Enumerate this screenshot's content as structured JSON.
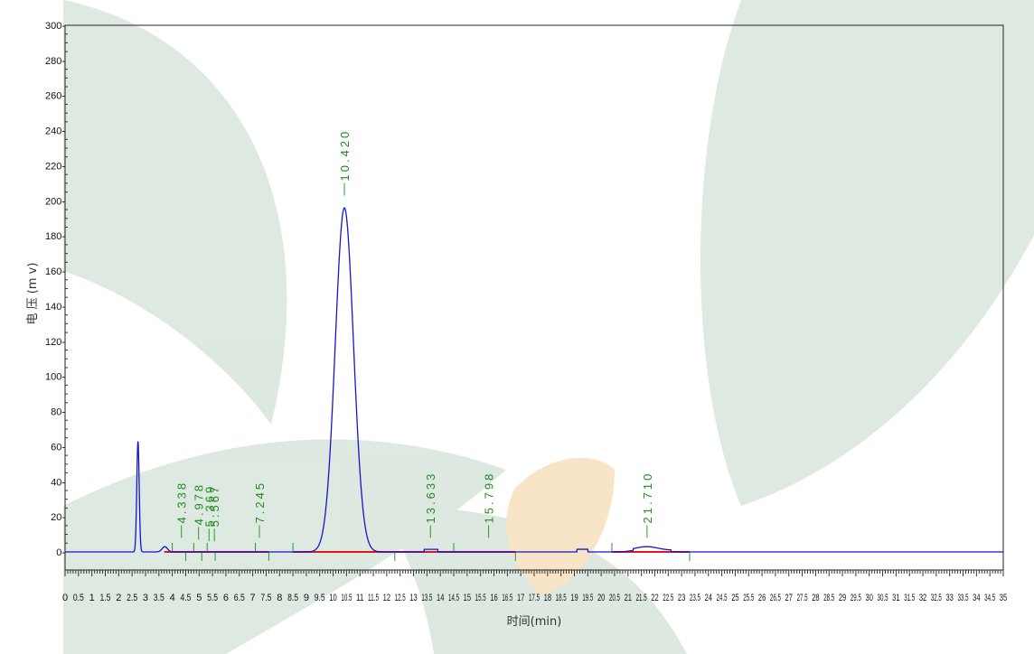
{
  "chart_data": {
    "type": "line",
    "title": "",
    "xlabel": "时间(min)",
    "ylabel": "电 压 (m v)",
    "xlim": [
      0,
      35
    ],
    "ylim": [
      -10,
      300
    ],
    "y_ticks": [
      0,
      20,
      40,
      60,
      80,
      100,
      120,
      140,
      160,
      180,
      200,
      220,
      240,
      260,
      280,
      300
    ],
    "y_tick_labels": [
      "0-",
      "20-",
      "40-",
      "60-",
      "80-",
      "100-",
      "120-",
      "140-",
      "160-",
      "180-",
      "200-",
      "220-",
      "240-",
      "260-",
      "280-",
      "300-"
    ],
    "x_ticks": [
      0,
      0.5,
      1,
      1.5,
      2,
      2.5,
      3,
      3.5,
      4,
      4.5,
      5,
      5.5,
      6,
      6.5,
      7,
      7.5,
      8,
      8.5,
      9,
      9.5,
      10,
      10.5,
      11,
      11.5,
      12,
      12.5,
      13,
      13.5,
      14,
      14.5,
      15,
      15.5,
      16,
      16.5,
      17,
      17.5,
      18,
      18.5,
      19,
      19.5,
      20,
      20.5,
      21,
      21.5,
      22,
      22.5,
      23,
      23.5,
      24,
      24.5,
      25,
      25.5,
      26,
      26.5,
      27,
      27.5,
      28,
      28.5,
      29,
      29.5,
      30,
      30.5,
      31,
      31.5,
      32,
      32.5,
      33,
      33.5,
      34,
      34.5,
      35
    ],
    "x_tick_labels": [
      "0",
      "0.5",
      "1",
      "1.5",
      "2",
      "2.5",
      "3",
      "3.5",
      "4",
      "4.5",
      "5",
      "5.5",
      "6",
      "6.5",
      "7",
      "7.5",
      "8",
      "8.5",
      "9",
      "9.5",
      "10",
      "10.5",
      "11",
      "11.5",
      "12",
      "12.5",
      "13",
      "13.5",
      "14",
      "14.5",
      "15",
      "15.5",
      "16",
      "16.5",
      "17",
      "17.5",
      "18",
      "18.5",
      "19",
      "19.5",
      "20",
      "20.5",
      "21",
      "21.5",
      "22",
      "22.5",
      "23",
      "23.5",
      "24",
      "24.5",
      "25",
      "25.5",
      "26",
      "26.5",
      "27",
      "27.5",
      "28",
      "28.5",
      "29",
      "29.5",
      "30",
      "30.5",
      "31",
      "31.5",
      "32",
      "32.5",
      "33",
      "33.5",
      "34",
      "34.5",
      "35"
    ],
    "peak_labels": [
      {
        "text": "4.338",
        "x": 4.34,
        "y_top": 8
      },
      {
        "text": "4.978",
        "x": 4.98,
        "y_top": 7
      },
      {
        "text": "5.369",
        "x": 5.37,
        "y_top": 6
      },
      {
        "text": "5.567",
        "x": 5.57,
        "y_top": 6
      },
      {
        "text": "7.245",
        "x": 7.25,
        "y_top": 8
      },
      {
        "text": "10.420",
        "x": 10.42,
        "y_top": 203
      },
      {
        "text": "13.633",
        "x": 13.63,
        "y_top": 8
      },
      {
        "text": "15.798",
        "x": 15.8,
        "y_top": 8
      },
      {
        "text": "21.710",
        "x": 21.71,
        "y_top": 8
      }
    ],
    "series": [
      {
        "color": "#1515d0",
        "peaks": [
          {
            "t": 2.72,
            "h": 63,
            "w": 0.045
          },
          {
            "t": 3.72,
            "h": 3,
            "w": 0.1
          },
          {
            "t": 10.42,
            "h": 196,
            "w": 0.34
          },
          {
            "t": 21.7,
            "h": 2,
            "w": 0.4
          }
        ],
        "boxes": [
          {
            "t0": 13.4,
            "t1": 13.9,
            "h": 1.5
          },
          {
            "t0": 19.1,
            "t1": 19.5,
            "h": 1.5
          },
          {
            "t0": 21.2,
            "t1": 22.6,
            "h": 1
          }
        ]
      }
    ],
    "baseline_segments": [
      {
        "t0": 3.7,
        "t1": 7.6,
        "color": "#e01818"
      },
      {
        "t0": 8.5,
        "t1": 12.3,
        "color": "#e01818"
      },
      {
        "t0": 12.3,
        "t1": 16.8,
        "color": "#e01818"
      },
      {
        "t0": 20.4,
        "t1": 23.3,
        "color": "#e01818"
      }
    ],
    "integration_marks": [
      4.0,
      4.5,
      4.8,
      5.1,
      5.3,
      5.6,
      7.1,
      7.6,
      8.5,
      12.3,
      14.5,
      16.8,
      20.4,
      23.3
    ],
    "grid": false,
    "legend": "none"
  }
}
